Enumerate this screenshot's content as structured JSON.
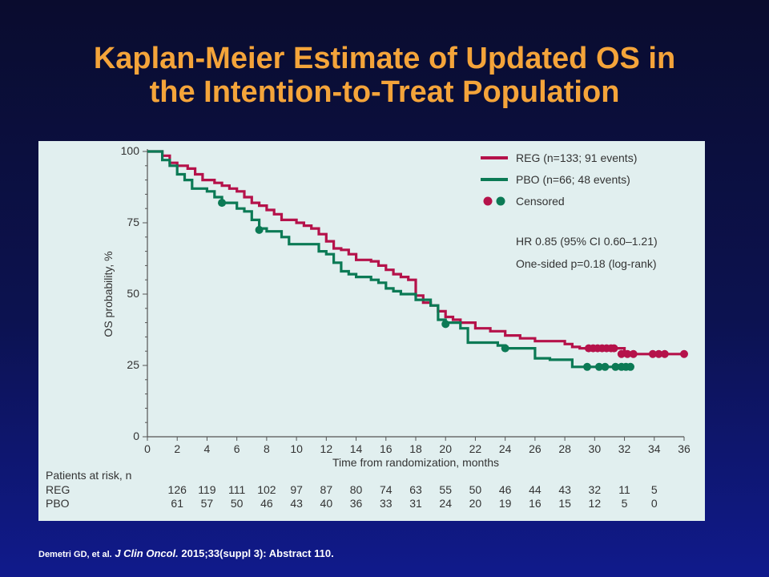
{
  "slide": {
    "title_line1": "Kaplan-Meier Estimate of Updated OS in",
    "title_line2": "the Intention-to-Treat Population",
    "citation": {
      "authors": "Demetri GD, et al.",
      "journal": "J Clin Oncol.",
      "rest": "2015;33(suppl 3): Abstract 110."
    }
  },
  "chart_data": {
    "type": "line",
    "xlabel": "Time from randomization, months",
    "ylabel": "OS probability, %",
    "xlim": [
      0,
      36
    ],
    "ylim": [
      0,
      100
    ],
    "x_ticks": [
      0,
      2,
      4,
      6,
      8,
      10,
      12,
      14,
      16,
      18,
      20,
      22,
      24,
      26,
      28,
      30,
      32,
      34,
      36
    ],
    "y_ticks": [
      0,
      25,
      50,
      75,
      100
    ],
    "grid": false,
    "legend_position": "top-right",
    "series": [
      {
        "name": "REG (n=133; 91 events)",
        "color": "#b5124a",
        "points": [
          [
            0,
            100
          ],
          [
            1,
            98.5
          ],
          [
            1.5,
            96
          ],
          [
            2,
            95
          ],
          [
            2.7,
            94
          ],
          [
            3.2,
            92
          ],
          [
            3.7,
            90
          ],
          [
            4.5,
            89
          ],
          [
            5,
            88
          ],
          [
            5.5,
            87
          ],
          [
            6,
            86
          ],
          [
            6.5,
            84
          ],
          [
            7,
            82
          ],
          [
            7.5,
            81
          ],
          [
            8,
            79.5
          ],
          [
            8.5,
            78
          ],
          [
            9,
            76
          ],
          [
            10,
            75
          ],
          [
            10.5,
            74
          ],
          [
            11,
            73
          ],
          [
            11.5,
            71
          ],
          [
            12,
            68.5
          ],
          [
            12.5,
            66
          ],
          [
            13,
            65.5
          ],
          [
            13.5,
            64
          ],
          [
            14,
            62
          ],
          [
            15,
            61.5
          ],
          [
            15.5,
            60
          ],
          [
            16,
            58.5
          ],
          [
            16.5,
            57
          ],
          [
            17,
            56
          ],
          [
            17.5,
            55
          ],
          [
            18,
            49.5
          ],
          [
            18.5,
            47
          ],
          [
            19,
            46
          ],
          [
            19.5,
            44
          ],
          [
            20,
            42
          ],
          [
            20.5,
            41
          ],
          [
            21,
            40
          ],
          [
            22,
            38
          ],
          [
            23,
            37
          ],
          [
            24,
            35.5
          ],
          [
            25,
            34.5
          ],
          [
            26,
            33.5
          ],
          [
            27,
            33.5
          ],
          [
            28,
            32.5
          ],
          [
            28.5,
            31.5
          ],
          [
            29,
            31
          ],
          [
            30,
            31
          ],
          [
            31,
            31
          ],
          [
            31.5,
            31
          ],
          [
            32,
            29
          ],
          [
            33,
            29
          ],
          [
            34,
            29
          ],
          [
            35,
            29
          ],
          [
            36,
            29
          ]
        ],
        "censored": [
          [
            29.6,
            31
          ],
          [
            29.9,
            31
          ],
          [
            30.2,
            31
          ],
          [
            30.5,
            31
          ],
          [
            30.8,
            31
          ],
          [
            31.1,
            31
          ],
          [
            31.3,
            31
          ],
          [
            31.8,
            29
          ],
          [
            32.2,
            29
          ],
          [
            32.6,
            29
          ],
          [
            33.9,
            29
          ],
          [
            34.3,
            29
          ],
          [
            34.7,
            29
          ],
          [
            36.0,
            29
          ]
        ]
      },
      {
        "name": "PBO (n=66; 48 events)",
        "color": "#0b7a55",
        "points": [
          [
            0,
            100
          ],
          [
            1,
            97
          ],
          [
            1.5,
            95
          ],
          [
            2,
            92
          ],
          [
            2.5,
            90
          ],
          [
            3,
            87
          ],
          [
            4,
            86
          ],
          [
            4.5,
            84
          ],
          [
            5,
            82
          ],
          [
            6,
            80
          ],
          [
            6.5,
            79
          ],
          [
            7,
            76
          ],
          [
            7.5,
            73
          ],
          [
            8,
            72
          ],
          [
            9,
            70
          ],
          [
            9.5,
            67.5
          ],
          [
            11,
            67.5
          ],
          [
            11.5,
            65
          ],
          [
            12,
            64
          ],
          [
            12.5,
            61
          ],
          [
            13,
            58
          ],
          [
            13.5,
            57
          ],
          [
            14,
            56
          ],
          [
            15,
            55
          ],
          [
            15.5,
            54
          ],
          [
            16,
            52
          ],
          [
            16.5,
            51
          ],
          [
            17,
            50
          ],
          [
            18,
            48
          ],
          [
            19,
            46
          ],
          [
            19.5,
            41
          ],
          [
            20,
            40
          ],
          [
            21,
            38
          ],
          [
            21.5,
            33
          ],
          [
            23,
            33
          ],
          [
            23.5,
            32
          ],
          [
            24,
            31
          ],
          [
            25,
            31
          ],
          [
            26,
            27.5
          ],
          [
            27,
            27
          ],
          [
            28,
            27
          ],
          [
            28.5,
            24.5
          ],
          [
            30,
            24.5
          ],
          [
            31,
            24.5
          ],
          [
            32,
            24.5
          ],
          [
            32.5,
            24.5
          ]
        ],
        "censored": [
          [
            5,
            82
          ],
          [
            7.5,
            72.5
          ],
          [
            20,
            39.5
          ],
          [
            24,
            31
          ],
          [
            29.5,
            24.5
          ],
          [
            30.3,
            24.5
          ],
          [
            30.7,
            24.5
          ],
          [
            31.4,
            24.5
          ],
          [
            31.8,
            24.5
          ],
          [
            32.1,
            24.5
          ],
          [
            32.4,
            24.5
          ]
        ]
      }
    ],
    "legend": {
      "reg_label": "REG (n=133; 91 events)",
      "pbo_label": "PBO (n=66; 48 events)",
      "censored_label": "Censored"
    },
    "annotations": {
      "hr": "HR 0.85 (95% CI 0.60–1.21)",
      "pvalue": "One-sided p=0.18 (log-rank)"
    },
    "risk_table": {
      "title": "Patients at risk, n",
      "months": [
        2,
        4,
        6,
        8,
        10,
        12,
        14,
        16,
        18,
        20,
        22,
        24,
        26,
        28,
        30,
        32,
        34
      ],
      "rows": [
        {
          "label": "REG",
          "values": [
            "126",
            "119",
            "111",
            "102",
            "97",
            "87",
            "80",
            "74",
            "63",
            "55",
            "50",
            "46",
            "44",
            "43",
            "32",
            "11",
            "5"
          ]
        },
        {
          "label": "PBO",
          "values": [
            "61",
            "57",
            "50",
            "46",
            "43",
            "40",
            "36",
            "33",
            "31",
            "24",
            "20",
            "19",
            "16",
            "15",
            "12",
            "5",
            "0"
          ]
        }
      ]
    }
  }
}
